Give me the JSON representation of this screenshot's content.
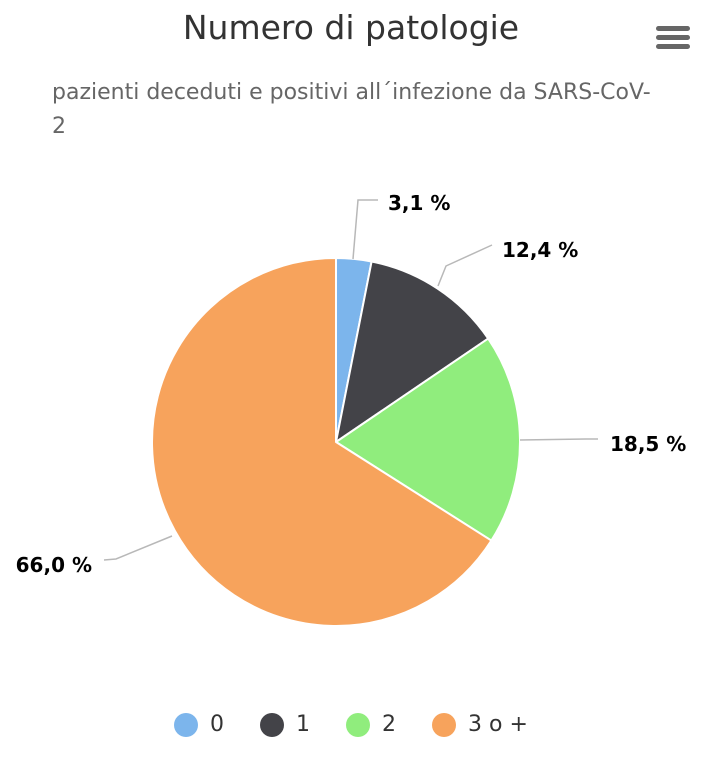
{
  "chart_data": {
    "type": "pie",
    "title": "Numero di patologie",
    "subtitle": "pazienti deceduti e positivi all´infezione da SARS-CoV-2",
    "categories": [
      "0",
      "1",
      "2",
      "3 o +"
    ],
    "values": [
      3.1,
      12.4,
      18.5,
      66.0
    ],
    "data_labels": [
      "3,1 %",
      "12,4 %",
      "18,5 %",
      "66,0 %"
    ],
    "colors": [
      "#7cb5ec",
      "#434348",
      "#90ed7d",
      "#f7a35c"
    ],
    "legend_placement": "bottom-center"
  },
  "ui": {
    "menu_icon": "hamburger-menu-icon"
  }
}
